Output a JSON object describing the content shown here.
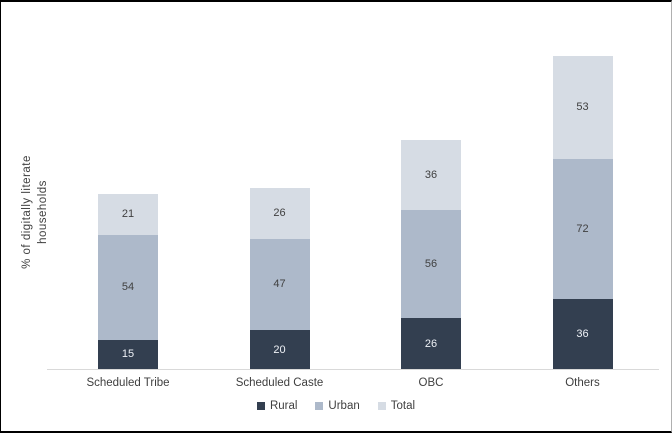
{
  "chart_data": {
    "type": "bar",
    "stacked": true,
    "title": "",
    "xlabel": "",
    "ylabel": "% of digitally literate households",
    "ylabel_lines": [
      "% of digitally literate",
      "households"
    ],
    "categories": [
      "Scheduled Tribe",
      "Scheduled Caste",
      "OBC",
      "Others"
    ],
    "series": [
      {
        "name": "Rural",
        "color": "#333f50",
        "label_color": "#eef1f6",
        "values": [
          15,
          20,
          26,
          36
        ]
      },
      {
        "name": "Urban",
        "color": "#adb9ca",
        "label_color": "#404040",
        "values": [
          54,
          47,
          56,
          72
        ]
      },
      {
        "name": "Total",
        "color": "#d6dce4",
        "label_color": "#404040",
        "values": [
          21,
          26,
          36,
          53
        ]
      }
    ],
    "legend_position": "bottom",
    "axis": {
      "x_axis_line_color": "#d9d9d9",
      "gridlines": false,
      "y_tick_labels_visible": false
    },
    "background": "#ffffff",
    "border_color": "#000000"
  }
}
